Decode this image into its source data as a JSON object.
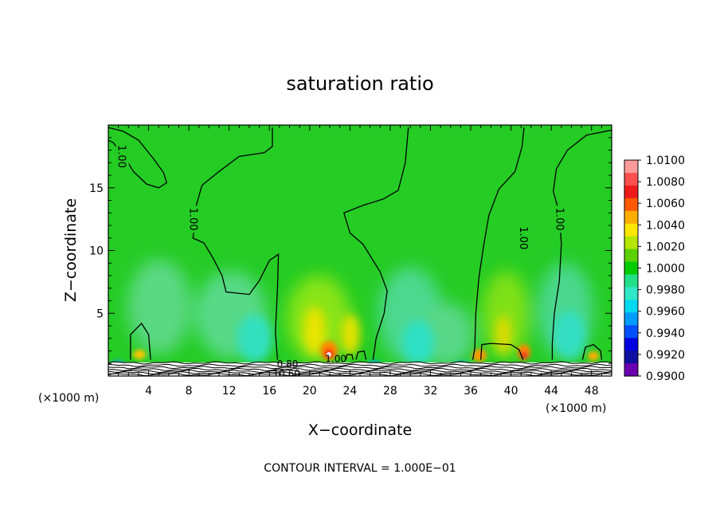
{
  "chart_data": {
    "type": "heatmap",
    "title": "saturation ratio",
    "xlabel": "X−coordinate",
    "ylabel": "Z−coordinate",
    "x_unit_left": "(×1000 m)",
    "x_unit_right": "(×1000 m)",
    "xlim": [
      0,
      50
    ],
    "ylim": [
      0,
      20
    ],
    "x_ticks": [
      4,
      8,
      12,
      16,
      20,
      24,
      28,
      32,
      36,
      40,
      44,
      48
    ],
    "y_ticks": [
      5,
      10,
      15
    ],
    "footer": "CONTOUR INTERVAL = 1.000E−01",
    "colorbar": {
      "labels": [
        "1.0100",
        "1.0080",
        "1.0060",
        "1.0040",
        "1.0020",
        "1.0000",
        "0.9980",
        "0.9960",
        "0.9940",
        "0.9920",
        "0.9900"
      ],
      "colors": [
        "#ff9a9a",
        "#ff5050",
        "#ee1a1a",
        "#ff5a00",
        "#ffae00",
        "#ffe600",
        "#b4e600",
        "#5cd000",
        "#00cc00",
        "#22e088",
        "#30e8c8",
        "#00d8f0",
        "#009cff",
        "#0050ff",
        "#0000e0",
        "#1010a0",
        "#6a00b0"
      ]
    },
    "contours": [
      {
        "label": "1.00",
        "label_x": 1.4,
        "label_z": 17.5,
        "points": [
          [
            0,
            19.8
          ],
          [
            1.5,
            19.5
          ],
          [
            3.0,
            18.8
          ],
          [
            4.5,
            17.3
          ],
          [
            5.5,
            16.2
          ],
          [
            5.8,
            15.4
          ],
          [
            5.0,
            15.0
          ],
          [
            3.8,
            15.3
          ],
          [
            2.5,
            16.3
          ],
          [
            1.5,
            17.6
          ],
          [
            0.5,
            18.6
          ],
          [
            0,
            18.8
          ]
        ]
      },
      {
        "label": "1.00",
        "label_x": 8.5,
        "label_z": 12.5,
        "points": [
          [
            16.3,
            19.8
          ],
          [
            16.3,
            18.3
          ],
          [
            15.5,
            17.8
          ],
          [
            13.0,
            17.5
          ],
          [
            11.0,
            16.3
          ],
          [
            9.3,
            15.2
          ],
          [
            8.7,
            13.5
          ],
          [
            8.6,
            12.0
          ],
          [
            8.4,
            11.0
          ],
          [
            9.5,
            10.6
          ],
          [
            10.4,
            9.4
          ],
          [
            11.3,
            8.0
          ],
          [
            11.7,
            6.7
          ],
          [
            14.0,
            6.5
          ],
          [
            15.0,
            7.6
          ],
          [
            16.0,
            9.2
          ],
          [
            16.9,
            9.7
          ],
          [
            16.8,
            7.0
          ],
          [
            16.6,
            3.5
          ],
          [
            16.8,
            1.3
          ]
        ]
      },
      {
        "label": "",
        "label_x": 0,
        "label_z": 0,
        "points": [
          [
            29.8,
            19.8
          ],
          [
            29.5,
            17.0
          ],
          [
            28.8,
            14.8
          ],
          [
            27.3,
            14.1
          ],
          [
            25.3,
            13.6
          ],
          [
            23.4,
            13.0
          ],
          [
            24.0,
            11.4
          ],
          [
            25.3,
            10.5
          ],
          [
            27.0,
            8.3
          ],
          [
            27.7,
            6.8
          ],
          [
            27.4,
            5.0
          ],
          [
            26.6,
            3.0
          ],
          [
            26.3,
            1.3
          ]
        ]
      },
      {
        "label": "1.00",
        "label_x": 41.3,
        "label_z": 11.0,
        "points": [
          [
            41.3,
            19.8
          ],
          [
            41.1,
            18.3
          ],
          [
            40.4,
            16.3
          ],
          [
            38.8,
            14.9
          ],
          [
            37.8,
            12.8
          ],
          [
            37.3,
            10.5
          ],
          [
            36.8,
            7.8
          ],
          [
            36.5,
            5.0
          ],
          [
            36.4,
            2.2
          ],
          [
            36.2,
            1.3
          ]
        ]
      },
      {
        "label": "1.00",
        "label_x": 44.9,
        "label_z": 12.5,
        "points": [
          [
            50,
            19.6
          ],
          [
            47.5,
            19.2
          ],
          [
            45.6,
            18.0
          ],
          [
            44.5,
            16.5
          ],
          [
            44.2,
            14.7
          ],
          [
            44.8,
            13.0
          ],
          [
            45.0,
            10.5
          ],
          [
            44.8,
            7.6
          ],
          [
            44.3,
            5.0
          ],
          [
            44.1,
            2.6
          ],
          [
            44.1,
            1.3
          ]
        ]
      },
      {
        "label": "",
        "label_x": 0,
        "label_z": 0,
        "points": [
          [
            2.2,
            1.3
          ],
          [
            2.2,
            3.3
          ],
          [
            3.3,
            4.2
          ],
          [
            4.0,
            3.3
          ],
          [
            4.2,
            1.3
          ]
        ]
      },
      {
        "label": "",
        "label_x": 0,
        "label_z": 0,
        "points": [
          [
            37.0,
            1.3
          ],
          [
            37.1,
            2.5
          ],
          [
            38.0,
            2.6
          ],
          [
            40.0,
            2.5
          ],
          [
            40.8,
            2.1
          ],
          [
            41.2,
            1.3
          ]
        ]
      },
      {
        "label": "",
        "label_x": 0,
        "label_z": 0,
        "points": [
          [
            47.1,
            1.3
          ],
          [
            47.4,
            2.3
          ],
          [
            48.2,
            2.5
          ],
          [
            48.9,
            2.0
          ],
          [
            49.0,
            1.3
          ]
        ]
      },
      {
        "label": "",
        "label_x": 0,
        "label_z": 0,
        "points": [
          [
            24.6,
            1.3
          ],
          [
            24.8,
            1.9
          ],
          [
            25.4,
            2.0
          ],
          [
            25.6,
            1.3
          ]
        ]
      },
      {
        "label": "",
        "label_x": 0,
        "label_z": 0,
        "points": [
          [
            23.6,
            1.3
          ],
          [
            23.7,
            1.7
          ],
          [
            24.2,
            1.7
          ],
          [
            24.3,
            1.3
          ]
        ]
      }
    ],
    "surface_contour_labels": [
      {
        "text": "0.80",
        "x": 17.8,
        "z": 0.95
      },
      {
        "text": "10.60",
        "x": 17.7,
        "z": 0.2
      },
      {
        "text": "1.00",
        "x": 22.6,
        "z": 1.35
      }
    ]
  }
}
